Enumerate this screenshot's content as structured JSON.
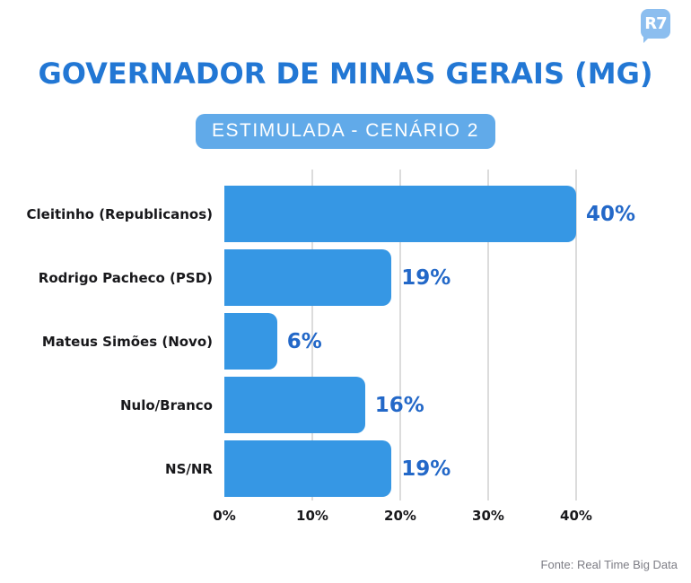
{
  "logo": {
    "text": "R7"
  },
  "header": {
    "title": "GOVERNADOR DE MINAS GERAIS (MG)",
    "badge": "ESTIMULADA - CENÁRIO 2"
  },
  "footer": {
    "source": "Fonte: Real Time Big Data"
  },
  "chart_data": {
    "type": "bar",
    "orientation": "horizontal",
    "title": "GOVERNADOR DE MINAS GERAIS (MG)",
    "subtitle": "ESTIMULADA - CENÁRIO 2",
    "categories": [
      "Cleitinho (Republicanos)",
      "Rodrigo Pacheco (PSD)",
      "Mateus Simões (Novo)",
      "Nulo/Branco",
      "NS/NR"
    ],
    "values": [
      40,
      19,
      6,
      16,
      19
    ],
    "value_labels": [
      "40%",
      "19%",
      "6%",
      "16%",
      "19%"
    ],
    "x_ticks": [
      "0%",
      "10%",
      "20%",
      "30%",
      "40%"
    ],
    "x_tick_values": [
      0,
      10,
      20,
      30,
      40
    ],
    "xlim": [
      0,
      45
    ],
    "grid": true,
    "legend": false,
    "source": "Fonte: Real Time Big Data",
    "colors": {
      "bar": "#3697E4",
      "value_label": "#2368C8",
      "category_label": "#18181B",
      "axis_label": "#18181B",
      "grid_line": "#DCDCDC",
      "title": "#2277D4",
      "badge_bg": "#61AAE9",
      "badge_text": "#FFFFFF",
      "footer_text": "#7D7D85",
      "logo_bg": "#8CBEEF",
      "background": "#FFFFFF"
    }
  }
}
